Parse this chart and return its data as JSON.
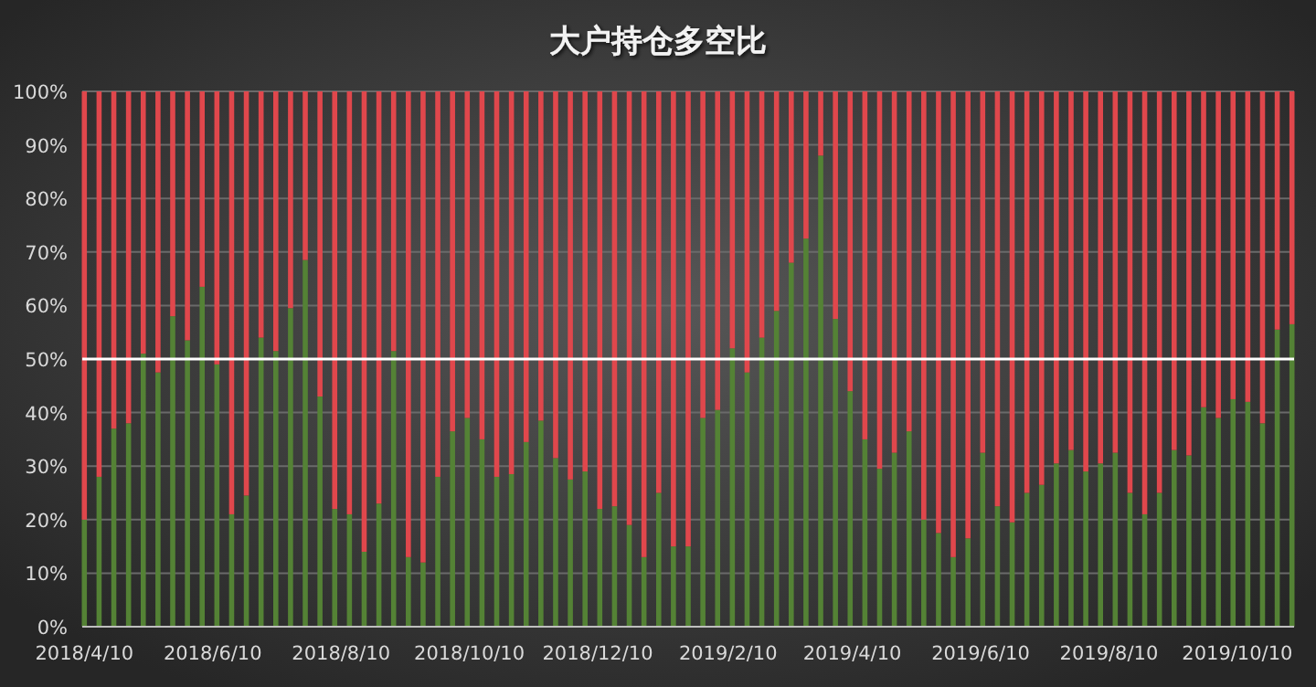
{
  "chart_data": {
    "type": "bar",
    "title": "大户持仓多空比",
    "stacked": true,
    "x": [
      "2018-04-10",
      "2018-04-17",
      "2018-04-24",
      "2018-05-01",
      "2018-05-08",
      "2018-05-15",
      "2018-05-22",
      "2018-05-29",
      "2018-06-05",
      "2018-06-12",
      "2018-06-19",
      "2018-06-26",
      "2018-07-03",
      "2018-07-10",
      "2018-07-17",
      "2018-07-24",
      "2018-07-31",
      "2018-08-07",
      "2018-08-14",
      "2018-08-21",
      "2018-08-28",
      "2018-09-04",
      "2018-09-11",
      "2018-09-18",
      "2018-09-25",
      "2018-10-02",
      "2018-10-09",
      "2018-10-16",
      "2018-10-23",
      "2018-10-30",
      "2018-11-06",
      "2018-11-13",
      "2018-11-20",
      "2018-11-27",
      "2018-12-04",
      "2018-12-11",
      "2018-12-18",
      "2018-12-25",
      "2019-01-01",
      "2019-01-08",
      "2019-01-15",
      "2019-01-22",
      "2019-01-29",
      "2019-02-05",
      "2019-02-12",
      "2019-02-19",
      "2019-02-26",
      "2019-03-05",
      "2019-03-12",
      "2019-03-19",
      "2019-03-26",
      "2019-04-02",
      "2019-04-09",
      "2019-04-16",
      "2019-04-23",
      "2019-04-30",
      "2019-05-07",
      "2019-05-14",
      "2019-05-21",
      "2019-05-28",
      "2019-06-04",
      "2019-06-11",
      "2019-06-18",
      "2019-06-25",
      "2019-07-02",
      "2019-07-09",
      "2019-07-16",
      "2019-07-23",
      "2019-07-30",
      "2019-08-06",
      "2019-08-13",
      "2019-08-20",
      "2019-08-27",
      "2019-09-03",
      "2019-09-10",
      "2019-09-17",
      "2019-09-24",
      "2019-10-01",
      "2019-10-08",
      "2019-10-15",
      "2019-10-22",
      "2019-10-29",
      "2019-11-05"
    ],
    "series": [
      {
        "color": "#548235",
        "values": [
          20,
          28,
          37,
          38,
          51,
          47.5,
          58,
          53.5,
          63.5,
          49,
          21,
          24.5,
          54,
          51.5,
          59.5,
          68.5,
          43,
          22,
          21,
          14,
          23,
          51.5,
          13,
          12,
          28,
          36.5,
          39,
          35,
          28,
          28.5,
          34.5,
          38.5,
          31.5,
          27.5,
          29,
          22,
          22.5,
          19,
          13,
          25,
          15,
          15,
          39,
          40.5,
          52,
          47.5,
          54,
          59,
          68,
          72.5,
          88,
          57.5,
          44,
          35,
          29.5,
          32.5,
          36.5,
          20,
          17.5,
          13,
          16.5,
          32.5,
          22.5,
          19.5,
          25,
          26.5,
          30.5,
          33,
          29,
          30.5,
          32.5,
          25,
          21,
          25,
          33,
          32,
          41,
          39,
          42.5,
          42,
          38,
          55.5,
          56.5
        ]
      },
      {
        "color": "#e0474c",
        "values": [
          80,
          72,
          63,
          62,
          49,
          52.5,
          42,
          46.5,
          36.5,
          51,
          79,
          75.5,
          46,
          48.5,
          40.5,
          31.5,
          57,
          78,
          79,
          86,
          77,
          48.5,
          87,
          88,
          72,
          63.5,
          61,
          65,
          72,
          71.5,
          65.5,
          61.5,
          68.5,
          72.5,
          71,
          78,
          77.5,
          81,
          87,
          75,
          85,
          85,
          61,
          59.5,
          48,
          52.5,
          46,
          41,
          32,
          27.5,
          12,
          42.5,
          56,
          65,
          70.5,
          67.5,
          63.5,
          80,
          82.5,
          87,
          83.5,
          67.5,
          77.5,
          80.5,
          75,
          73.5,
          69.5,
          67,
          71,
          69.5,
          67.5,
          75,
          79,
          75,
          67,
          68,
          59,
          61,
          57.5,
          58,
          62,
          44.5,
          43.5
        ]
      }
    ],
    "xlim": [
      "2018-04-09",
      "2019-11-06"
    ],
    "xticks": [
      {
        "value": "2018-04-10",
        "label": "2018/4/10"
      },
      {
        "value": "2018-06-10",
        "label": "2018/6/10"
      },
      {
        "value": "2018-08-10",
        "label": "2018/8/10"
      },
      {
        "value": "2018-10-10",
        "label": "2018/10/10"
      },
      {
        "value": "2018-12-10",
        "label": "2018/12/10"
      },
      {
        "value": "2019-02-10",
        "label": "2019/2/10"
      },
      {
        "value": "2019-04-10",
        "label": "2019/4/10"
      },
      {
        "value": "2019-06-10",
        "label": "2019/6/10"
      },
      {
        "value": "2019-08-10",
        "label": "2019/8/10"
      },
      {
        "value": "2019-10-10",
        "label": "2019/10/10"
      }
    ],
    "ylim": [
      0,
      100
    ],
    "yticks": [
      {
        "value": 0,
        "label": "0%"
      },
      {
        "value": 10,
        "label": "10%"
      },
      {
        "value": 20,
        "label": "20%"
      },
      {
        "value": 30,
        "label": "30%"
      },
      {
        "value": 40,
        "label": "40%"
      },
      {
        "value": 50,
        "label": "50%"
      },
      {
        "value": 60,
        "label": "60%"
      },
      {
        "value": 70,
        "label": "70%"
      },
      {
        "value": 80,
        "label": "80%"
      },
      {
        "value": 90,
        "label": "90%"
      },
      {
        "value": 100,
        "label": "100%"
      }
    ],
    "grid": "y",
    "ref_lines": [
      {
        "axis": "y",
        "value": 50,
        "color": "#ffffff"
      }
    ]
  }
}
